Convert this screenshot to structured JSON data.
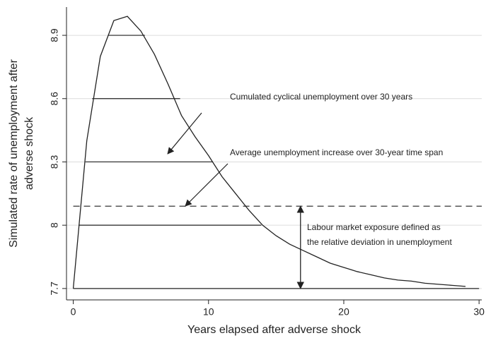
{
  "chart_data": {
    "type": "line",
    "xlabel": "Years elapsed after adverse shock",
    "ylabel": [
      "Simulated rate of unemployment after",
      "adverse shock"
    ],
    "x": [
      0,
      1,
      2,
      3,
      4,
      5,
      6,
      7,
      8,
      9,
      10,
      11,
      12,
      13,
      14,
      15,
      16,
      17,
      18,
      19,
      20,
      21,
      22,
      23,
      24,
      25,
      26,
      27,
      28,
      29
    ],
    "series": [
      {
        "color": "#222222",
        "values": [
          7.7,
          8.4,
          8.8,
          8.97,
          8.99,
          8.92,
          8.81,
          8.67,
          8.52,
          8.42,
          8.33,
          8.23,
          8.15,
          8.07,
          8.0,
          7.95,
          7.91,
          7.88,
          7.85,
          7.82,
          7.8,
          7.78,
          7.765,
          7.75,
          7.74,
          7.735,
          7.725,
          7.72,
          7.715,
          7.71
        ]
      }
    ],
    "segments": [
      {
        "y": 8.9,
        "x": [
          2.6,
          5.3
        ]
      },
      {
        "y": 8.6,
        "x": [
          1.4,
          7.9
        ]
      },
      {
        "y": 8.3,
        "x": [
          0.9,
          10.3
        ]
      },
      {
        "y": 8.0,
        "x": [
          0.4,
          13.9
        ]
      },
      {
        "y": 7.7,
        "x": [
          0,
          30
        ]
      }
    ],
    "reference_line": {
      "y": 8.09,
      "x": [
        0,
        30.2
      ],
      "style": "dashed"
    },
    "exposure_arrow": {
      "x": 16.8,
      "y": [
        7.7,
        8.09
      ]
    },
    "annotations": [
      {
        "lines": [
          "Cumulated cyclical unemployment over 30 years"
        ]
      },
      {
        "lines": [
          "Average unemployment increase over 30-year time span"
        ]
      },
      {
        "lines": [
          "Labour market exposure defined as",
          "the relative deviation in unemployment"
        ]
      }
    ],
    "xlim": [
      -0.5,
      30.2
    ],
    "ylim": [
      7.646,
      9.034
    ],
    "xticks": [
      0,
      10,
      20,
      30
    ],
    "yticks": [
      7.7,
      8,
      8.3,
      8.6,
      8.9
    ],
    "grid": true
  }
}
